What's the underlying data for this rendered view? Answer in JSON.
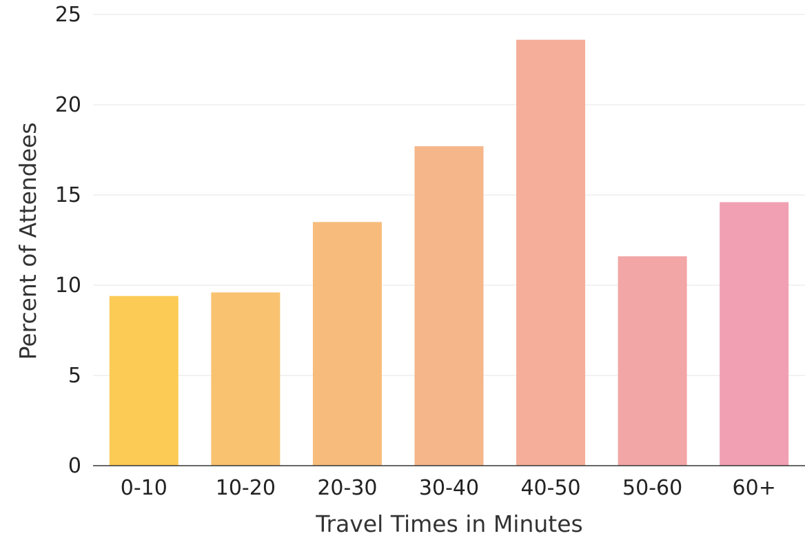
{
  "chart_data": {
    "type": "bar",
    "categories": [
      "0-10",
      "10-20",
      "20-30",
      "30-40",
      "40-50",
      "50-60",
      "60+"
    ],
    "values": [
      9.4,
      9.6,
      13.5,
      17.7,
      23.6,
      11.6,
      14.6
    ],
    "colors": [
      "#fccb56",
      "#f9c271",
      "#f7bc7b",
      "#f5b68a",
      "#f4ae99",
      "#f2a6a6",
      "#f0a0b2"
    ],
    "title": "",
    "xlabel": "Travel Times in Minutes",
    "ylabel": "Percent of Attendees",
    "ylim": [
      0,
      25
    ],
    "yticks": [
      0,
      5,
      10,
      15,
      20,
      25
    ],
    "grid": true,
    "legend": "none"
  }
}
